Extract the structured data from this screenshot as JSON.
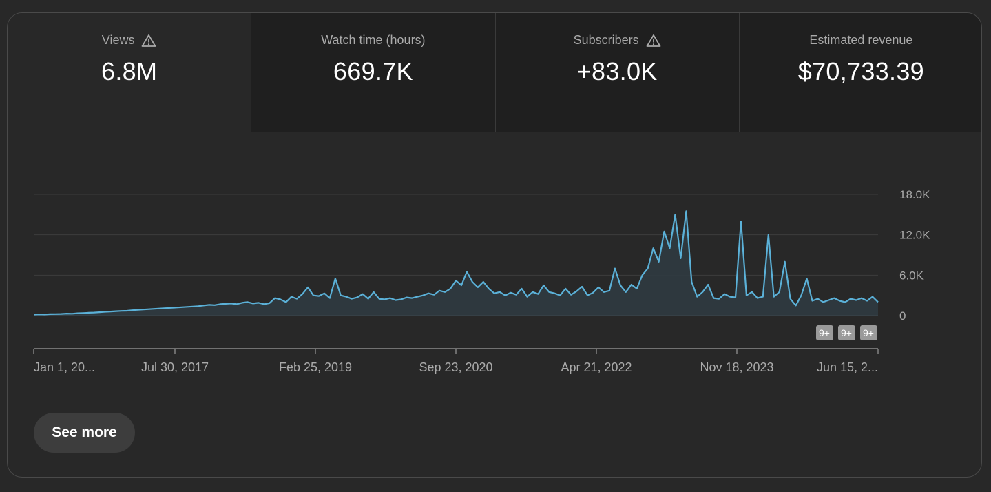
{
  "metrics": [
    {
      "label": "Views",
      "value": "6.8M",
      "warning": true,
      "active": true
    },
    {
      "label": "Watch time (hours)",
      "value": "669.7K",
      "warning": false,
      "active": false
    },
    {
      "label": "Subscribers",
      "value": "+83.0K",
      "warning": true,
      "active": false
    },
    {
      "label": "Estimated revenue",
      "value": "$70,733.39",
      "warning": false,
      "active": false
    }
  ],
  "icons": {
    "warning": "warning-triangle-icon"
  },
  "see_more_label": "See more",
  "colors": {
    "line": "#5bb1d8",
    "area": "#2f3a40",
    "grid": "#3c3c3c",
    "badge": "#9a9a9a"
  },
  "chart_data": {
    "type": "area",
    "series": [
      {
        "values": [
          150,
          180,
          160,
          210,
          230,
          250,
          300,
          280,
          350,
          380,
          420,
          450,
          500,
          560,
          600,
          650,
          700,
          720,
          800,
          850,
          900,
          950,
          1000,
          1050,
          1100,
          1150,
          1200,
          1250,
          1300,
          1350,
          1400,
          1500,
          1600,
          1550,
          1700,
          1750,
          1800,
          1700,
          1900,
          2000,
          1800,
          1900,
          1700,
          1850,
          2600,
          2400,
          2000,
          2800,
          2500,
          3200,
          4200,
          3000,
          2900,
          3300,
          2600,
          5500,
          3000,
          2800,
          2500,
          2700,
          3200,
          2500,
          3500,
          2500,
          2400,
          2600,
          2300,
          2400,
          2700,
          2600,
          2800,
          3000,
          3300,
          3100,
          3700,
          3500,
          4000,
          5200,
          4500,
          6500,
          5000,
          4200,
          5000,
          4000,
          3300,
          3500,
          3000,
          3400,
          3100,
          4000,
          2800,
          3500,
          3200,
          4500,
          3500,
          3300,
          3000,
          4000,
          3100,
          3600,
          4300,
          3000,
          3400,
          4200,
          3500,
          3700,
          7000,
          4500,
          3500,
          4600,
          4000,
          6000,
          7000,
          10000,
          8000,
          12500,
          10000,
          15000,
          8500,
          15500,
          5000,
          2800,
          3500,
          4600,
          2600,
          2500,
          3200,
          2800,
          2700,
          14000,
          3000,
          3500,
          2600,
          2800,
          12000,
          2800,
          3500,
          8000,
          2500,
          1500,
          3000,
          5500,
          2200,
          2500,
          2000,
          2300,
          2600,
          2200,
          2000,
          2500,
          2300,
          2600,
          2200,
          2800,
          2000
        ]
      }
    ],
    "x_ticks": [
      "Jan 1, 20...",
      "Jul 30, 2017",
      "Feb 25, 2019",
      "Sep 23, 2020",
      "Apr 21, 2022",
      "Nov 18, 2023",
      "Jun 15, 2..."
    ],
    "y_ticks": [
      "0",
      "6.0K",
      "12.0K",
      "18.0K"
    ],
    "ylim": [
      0,
      18000
    ],
    "badges": [
      "9+",
      "9+",
      "9+"
    ],
    "grid": true
  }
}
